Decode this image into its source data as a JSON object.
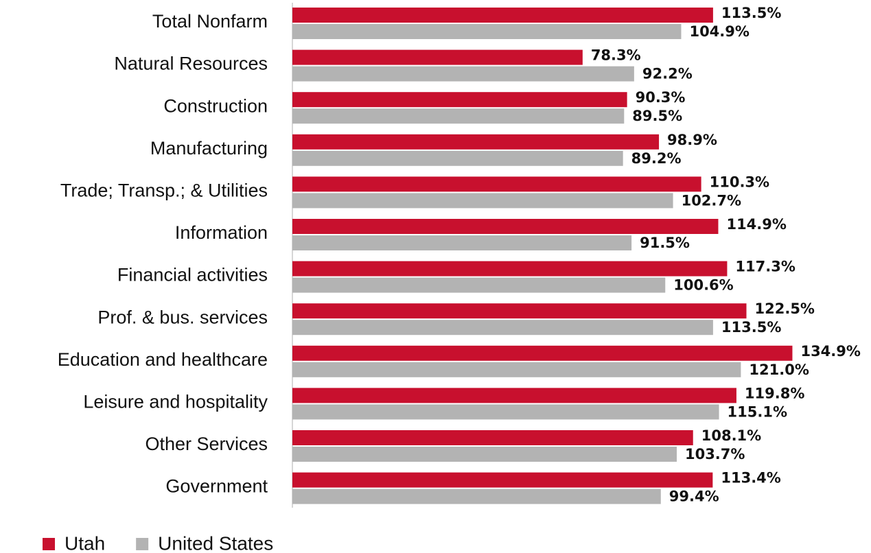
{
  "chart_data": {
    "type": "hbar",
    "categories": [
      "Total Nonfarm",
      "Natural Resources",
      "Construction",
      "Manufacturing",
      "Trade; Transp.; & Utilities",
      "Information",
      "Financial activities",
      "Prof. & bus. services",
      "Education and healthcare",
      "Leisure and hospitality",
      "Other Services",
      "Government"
    ],
    "series": [
      {
        "name": "Utah",
        "color": "#c8102e",
        "values": [
          113.5,
          78.3,
          90.3,
          98.9,
          110.3,
          114.9,
          117.3,
          122.5,
          134.9,
          119.8,
          108.1,
          113.4
        ],
        "value_labels": [
          "113.5%",
          "78.3%",
          "90.3%",
          "98.9%",
          "110.3%",
          "114.9%",
          "117.3%",
          "122.5%",
          "134.9%",
          "119.8%",
          "108.1%",
          "113.4%"
        ]
      },
      {
        "name": "United States",
        "color": "#b3b3b3",
        "values": [
          104.9,
          92.2,
          89.5,
          89.2,
          102.7,
          91.5,
          100.6,
          113.5,
          121,
          115.1,
          103.7,
          99.4
        ],
        "value_labels": [
          "104.9%",
          "92.2%",
          "89.5%",
          "89.2%",
          "102.7%",
          "91.5%",
          "100.6%",
          "113.5%",
          "121.0%",
          "115.1%",
          "103.7%",
          "99.4%"
        ]
      }
    ],
    "xlim": [
      0,
      150
    ],
    "legend": "bottom-left"
  }
}
